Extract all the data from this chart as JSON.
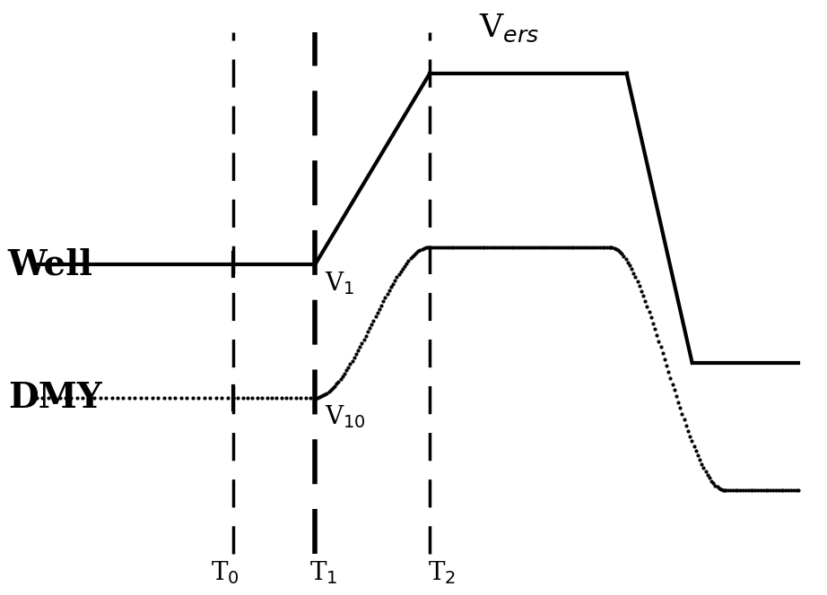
{
  "background_color": "#ffffff",
  "well_label": "Well",
  "dmy_label": "DMY",
  "vers_label": "V$_{ers}$",
  "v1_label": "V$_1$",
  "v10_label": "V$_{10}$",
  "T0_label": "T$_0$",
  "T1_label": "T$_1$",
  "T2_label": "T$_2$",
  "T0": 2.8,
  "T1": 3.8,
  "T2": 5.2,
  "drop_start": 7.6,
  "drop_end": 8.4,
  "x_end": 9.7,
  "well_baseline": 5.5,
  "well_vers": 8.8,
  "well_low_end": 3.8,
  "dmy_baseline": 3.2,
  "dmy_v10": 5.8,
  "dmy_drop_start": 7.4,
  "dmy_drop_end": 8.8,
  "dmy_low_end": 1.6,
  "xlim": [
    0.0,
    10.0
  ],
  "ylim": [
    0.0,
    10.0
  ],
  "figsize": [
    9.22,
    6.64
  ],
  "dpi": 100,
  "lw_main": 3.0,
  "dot_size": 4.0,
  "dash_lw_thin": 2.5,
  "dash_lw_thick": 4.0,
  "fs_label": 28,
  "fs_volt": 20,
  "fs_time": 20,
  "fs_vers": 26
}
